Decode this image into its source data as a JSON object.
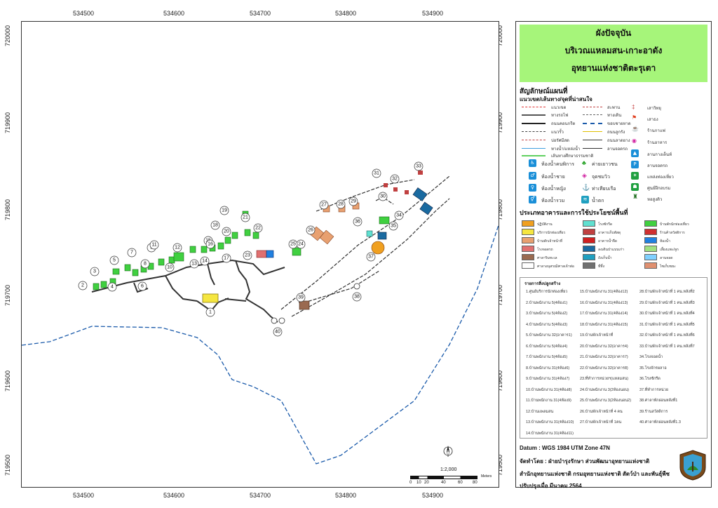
{
  "axes": {
    "x_ticks": [
      "534500",
      "534600",
      "534700",
      "534800",
      "534900"
    ],
    "y_ticks": [
      "720000",
      "719900",
      "719800",
      "719700",
      "719600",
      "719500"
    ]
  },
  "title": {
    "line1": "ผังปัจจุบัน",
    "line2": "บริเวณแหลมสน-เกาะอาดัง",
    "line3": "อุทยานแห่งชาติตะรุเตา"
  },
  "legend": {
    "heading": "สัญลักษณ์แผนที่",
    "subheading": "แนวเขต/เส้นทาง/จุดที่น่าสนใจ",
    "lines_col1": [
      "แนวเขต",
      "ทางรถไฟ",
      "ถนนคอนกรีต",
      "แนวรั้ว",
      "บ่อรัศมีสด",
      "ทางน้ำ/แหล่งน้ำ",
      "เส้นทางศึกษาธรรมชาติ"
    ],
    "lines_col2": [
      "สะพาน",
      "ทางเดิน",
      "ขอบชายหาด",
      "ถนนลูกรัง",
      "ถนนลาดยาง",
      "ลานจอดรถ"
    ],
    "points_col3": [
      "เสาวิทยุ",
      "เสาธง",
      "ร้านกาแฟ",
      "ร้านอาหาร",
      "ลานกางเต็นท์",
      "ลานจอดรถ",
      "แหล่งท่องเที่ยว",
      "ศูนย์ฝึกอบรม",
      "หอสูงดิว"
    ],
    "points_col1": [
      "ห้องน้ำคนพิการ",
      "ห้องน้ำชาย",
      "ห้องน้ำหญิง",
      "ห้องน้ำรวม"
    ],
    "points_col2": [
      "ค่ายเยาวชน",
      "จุดชมวิว",
      "ท่าเทียบเรือ",
      "น้ำตก"
    ],
    "landuse_title": "ประเภทอาคารและการใช้ประโยชน์พื้นที่",
    "landuse": [
      {
        "label": "ปฏิบัติงาน",
        "color": "#f0a020"
      },
      {
        "label": "บริการนักท่องเที่ยว",
        "color": "#f5e640"
      },
      {
        "label": "บ้านพักเจ้าหน้าที่",
        "color": "#e8a070"
      },
      {
        "label": "โรงจอดรถ",
        "color": "#e07070"
      },
      {
        "label": "ศาลาริมทะเล",
        "color": "#9a6a50"
      },
      {
        "label": "ศาลาอนุสรณ์/ศาลเจ้าพ่อ",
        "color": "#ffffff"
      },
      {
        "label": "โรงซักรีด",
        "color": "#60e0d0"
      },
      {
        "label": "อาคารเก็บพัสดุ",
        "color": "#c04040"
      },
      {
        "label": "อาคารน้ำจืด",
        "color": "#d02020"
      },
      {
        "label": "ลงเดินป่าแบบเก่า",
        "color": "#1a6aa0"
      },
      {
        "label": "ถังเก็บน้ำ",
        "color": "#20a0c0"
      },
      {
        "label": "ที่ทิ้ง",
        "color": "#707070"
      },
      {
        "label": "บ้านพักนักท่องเที่ยว",
        "color": "#40d040"
      },
      {
        "label": "ร้านค้าสวัสดิการ",
        "color": "#d03030"
      },
      {
        "label": "ห้องน้ำ",
        "color": "#2080e0"
      },
      {
        "label": "เลี้ยงแพะ/ลูก",
        "color": "#a0e080"
      },
      {
        "label": "ลานจอด",
        "color": "#80d0ff"
      },
      {
        "label": "ไซเก็บขยะ",
        "color": "#e09070"
      }
    ],
    "building_list_title": "รายการสิ่งปลูกสร้าง",
    "building_list": [
      [
        "1.ศูนย์บริการนักท่องเที่ยว",
        "2.บ้านพนักงาน 5(4ห้อง1)",
        "3.บ้านพนักงาน 5(4ห้อง2)",
        "4.บ้านพนักงาน 5(4ห้อง3)",
        "5.บ้านพนักงาน 32(อาคาร1)",
        "6.บ้านพนักงาน 5(4ห้อง4)",
        "7.บ้านพนักงาน 5(4ห้อง5)",
        "8.บ้านพนักงาน 31(4ห้อง6)",
        "9.บ้านพนักงาน 31(4ห้อง7)",
        "10.บ้านพนักงาน 31(4ห้อง8)",
        "11.บ้านพนักงาน 31(4ห้อง9)",
        "12.บ้านแพลมสน",
        "13.บ้านพนักงาน 31(4ห้อง10)",
        "14.บ้านพนักงาน 31(4ห้อง11)"
      ],
      [
        "15.บ้านพนักงาน 31(4ห้อง12)",
        "16.บ้านพนักงาน 31(4ห้อง13)",
        "17.บ้านพนักงาน 31(4ห้อง14)",
        "18.บ้านพนักงาน 31(4ห้อง15)",
        "19.บ้านพักเจ้าหน้าที่",
        "20.บ้านพนักงาน 32(อาคาร4)",
        "21.บ้านพนักงาน 32(อาคาร7)",
        "22.บ้านพนักงาน 32(อาคาร8)",
        "23.ที่ทำการหน่วยฯ(แหลมสน)",
        "24.บ้านพนักงาน 3(2ห้องนอน)",
        "25.บ้านพนักงาน 3(2ห้องนอน2)",
        "26.บ้านพักเจ้าหน้าที่ 4 คน",
        "27.บ้านพักเจ้าหน้าที่ 1คน"
      ],
      [
        "28.บ้านพักเจ้าหน้าที่ 1 คน.หลังที่2",
        "29.บ้านพักเจ้าหน้าที่ 1 คน.หลังที่3",
        "30.บ้านพักเจ้าหน้าที่ 1 คน.หลังที่4",
        "31.บ้านพักเจ้าหน้าที่ 1 คน.หลังที่5",
        "32.บ้านพักเจ้าหน้าที่ 1 คน.หลังที่6",
        "33.บ้านพักเจ้าหน้าที่ 1 คน.หลังที่7",
        "34.โรงจอดน้ำ",
        "35.โรงจักรผลาอ",
        "36.โรงซักรีด",
        "37.ที่ทำการหน่วย",
        "38.ศาลาพักผ่อนหลังที่1",
        "39.ร้านสวัสดิการ",
        "40.ศาลาพักผ่อนหลังที่1.3"
      ]
    ]
  },
  "footer": {
    "datum": "Datum : WGS 1984 UTM Zone 47N",
    "by": "จัดทำโดย : ฝ่ายบำรุงรักษา ส่วนพัฒนาอุทยานแห่งชาติ",
    "office": "สำนักอุทยานแห่งชาติ กรมอุทยานแห่งชาติ สัตว์ป่า และพันธุ์พืช",
    "updated": "ปรับปรุงเมื่อ มีนาคม 2564"
  },
  "scale": {
    "ratio": "1:2,000",
    "ticks": [
      "0",
      "10",
      "20",
      "40",
      "60",
      "80"
    ],
    "unit": "Meters"
  },
  "map_labels": [
    "1",
    "2",
    "3",
    "4",
    "5",
    "6",
    "7",
    "8",
    "9",
    "10",
    "11",
    "12",
    "13",
    "14",
    "15",
    "16",
    "17",
    "18",
    "19",
    "20",
    "21",
    "22",
    "23",
    "24",
    "25",
    "26",
    "27",
    "28",
    "29",
    "30",
    "31",
    "32",
    "33",
    "34",
    "35",
    "36",
    "37",
    "38",
    "39",
    "40"
  ],
  "colors": {
    "title_bg": "#a6f57a",
    "building_green": "#40d040",
    "coast": "#1a5aaa",
    "roads": "#333333",
    "admin_blue": "#1a8fd8"
  }
}
